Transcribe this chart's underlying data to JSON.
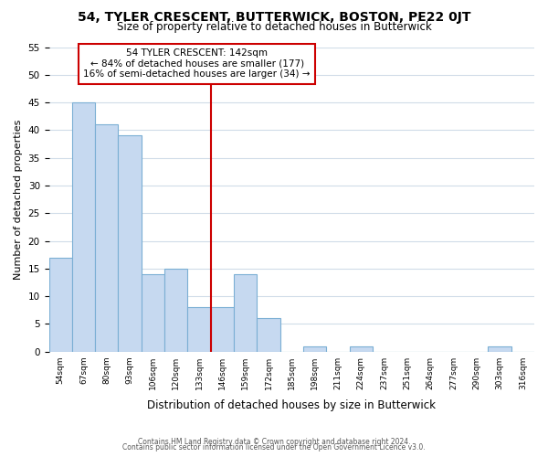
{
  "title": "54, TYLER CRESCENT, BUTTERWICK, BOSTON, PE22 0JT",
  "subtitle": "Size of property relative to detached houses in Butterwick",
  "xlabel": "Distribution of detached houses by size in Butterwick",
  "ylabel": "Number of detached properties",
  "bin_labels": [
    "54sqm",
    "67sqm",
    "80sqm",
    "93sqm",
    "106sqm",
    "120sqm",
    "133sqm",
    "146sqm",
    "159sqm",
    "172sqm",
    "185sqm",
    "198sqm",
    "211sqm",
    "224sqm",
    "237sqm",
    "251sqm",
    "264sqm",
    "277sqm",
    "290sqm",
    "303sqm",
    "316sqm"
  ],
  "bar_values": [
    17,
    45,
    41,
    39,
    14,
    15,
    8,
    8,
    14,
    6,
    0,
    1,
    0,
    1,
    0,
    0,
    0,
    0,
    0,
    1,
    0
  ],
  "bar_color": "#c6d9f0",
  "bar_edge_color": "#7bafd4",
  "property_line_x": 7,
  "property_line_color": "#cc0000",
  "annotation_title": "54 TYLER CRESCENT: 142sqm",
  "annotation_line1": "← 84% of detached houses are smaller (177)",
  "annotation_line2": "16% of semi-detached houses are larger (34) →",
  "annotation_box_color": "#ffffff",
  "annotation_box_edge": "#cc0000",
  "ylim": [
    0,
    55
  ],
  "yticks": [
    0,
    5,
    10,
    15,
    20,
    25,
    30,
    35,
    40,
    45,
    50,
    55
  ],
  "footer1": "Contains HM Land Registry data © Crown copyright and database right 2024.",
  "footer2": "Contains public sector information licensed under the Open Government Licence v3.0.",
  "background_color": "#ffffff",
  "grid_color": "#d0dce8"
}
